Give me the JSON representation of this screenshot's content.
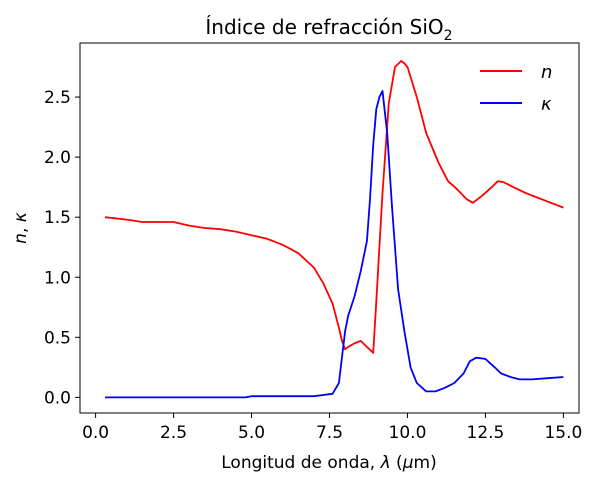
{
  "chart_data": {
    "type": "line",
    "title": "Índice de refracción SiO",
    "title_subscript": "2",
    "xlabel_prefix": "Longitud de onda, ",
    "xlabel_symbol": "λ",
    "xlabel_unit_open": " (",
    "xlabel_unit_mu": "μ",
    "xlabel_unit_rest": "m)",
    "ylabel_n": "n",
    "ylabel_sep": ", ",
    "ylabel_k": "κ",
    "xlim": [
      -0.5,
      15.5
    ],
    "ylim": [
      -0.13,
      2.95
    ],
    "xticks": [
      0.0,
      2.5,
      5.0,
      7.5,
      10.0,
      12.5,
      15.0
    ],
    "xtick_labels": [
      "0.0",
      "2.5",
      "5.0",
      "7.5",
      "10.0",
      "12.5",
      "15.0"
    ],
    "yticks": [
      0.0,
      0.5,
      1.0,
      1.5,
      2.0,
      2.5
    ],
    "ytick_labels": [
      "0.0",
      "0.5",
      "1.0",
      "1.5",
      "2.0",
      "2.5"
    ],
    "grid": false,
    "legend_position": "top-right",
    "series": [
      {
        "name": "n",
        "color": "#ff0000",
        "x": [
          0.3,
          1.0,
          1.5,
          2.0,
          2.5,
          3.0,
          3.5,
          4.0,
          4.5,
          5.0,
          5.5,
          6.0,
          6.5,
          7.0,
          7.3,
          7.6,
          7.8,
          7.9,
          8.0,
          8.1,
          8.3,
          8.5,
          8.7,
          8.9,
          9.0,
          9.2,
          9.4,
          9.6,
          9.8,
          9.9,
          10.0,
          10.3,
          10.6,
          11.0,
          11.3,
          11.6,
          11.9,
          12.1,
          12.4,
          12.7,
          12.9,
          13.1,
          13.4,
          13.8,
          14.2,
          14.6,
          15.0
        ],
        "y": [
          1.5,
          1.48,
          1.46,
          1.46,
          1.46,
          1.43,
          1.41,
          1.4,
          1.38,
          1.35,
          1.32,
          1.27,
          1.2,
          1.08,
          0.95,
          0.78,
          0.58,
          0.47,
          0.4,
          0.42,
          0.45,
          0.47,
          0.42,
          0.37,
          0.8,
          1.7,
          2.45,
          2.75,
          2.8,
          2.78,
          2.75,
          2.5,
          2.2,
          1.95,
          1.8,
          1.73,
          1.65,
          1.62,
          1.68,
          1.75,
          1.8,
          1.79,
          1.75,
          1.7,
          1.66,
          1.62,
          1.58
        ]
      },
      {
        "name": "κ",
        "color": "#0000ff",
        "x": [
          0.3,
          1.0,
          2.0,
          3.0,
          4.0,
          4.8,
          5.0,
          5.5,
          6.0,
          6.5,
          7.0,
          7.3,
          7.6,
          7.8,
          8.0,
          8.1,
          8.3,
          8.5,
          8.7,
          8.8,
          8.9,
          9.0,
          9.1,
          9.2,
          9.35,
          9.5,
          9.7,
          9.9,
          10.1,
          10.3,
          10.6,
          10.9,
          11.2,
          11.5,
          11.8,
          12.0,
          12.2,
          12.5,
          12.8,
          13.0,
          13.3,
          13.6,
          14.0,
          14.5,
          15.0
        ],
        "y": [
          0.0,
          0.0,
          0.0,
          0.0,
          0.0,
          0.0,
          0.01,
          0.01,
          0.01,
          0.01,
          0.01,
          0.02,
          0.03,
          0.12,
          0.55,
          0.68,
          0.84,
          1.05,
          1.3,
          1.65,
          2.1,
          2.4,
          2.5,
          2.55,
          2.2,
          1.6,
          0.9,
          0.55,
          0.25,
          0.12,
          0.05,
          0.05,
          0.08,
          0.12,
          0.2,
          0.3,
          0.33,
          0.32,
          0.25,
          0.2,
          0.17,
          0.15,
          0.15,
          0.16,
          0.17
        ]
      }
    ]
  }
}
